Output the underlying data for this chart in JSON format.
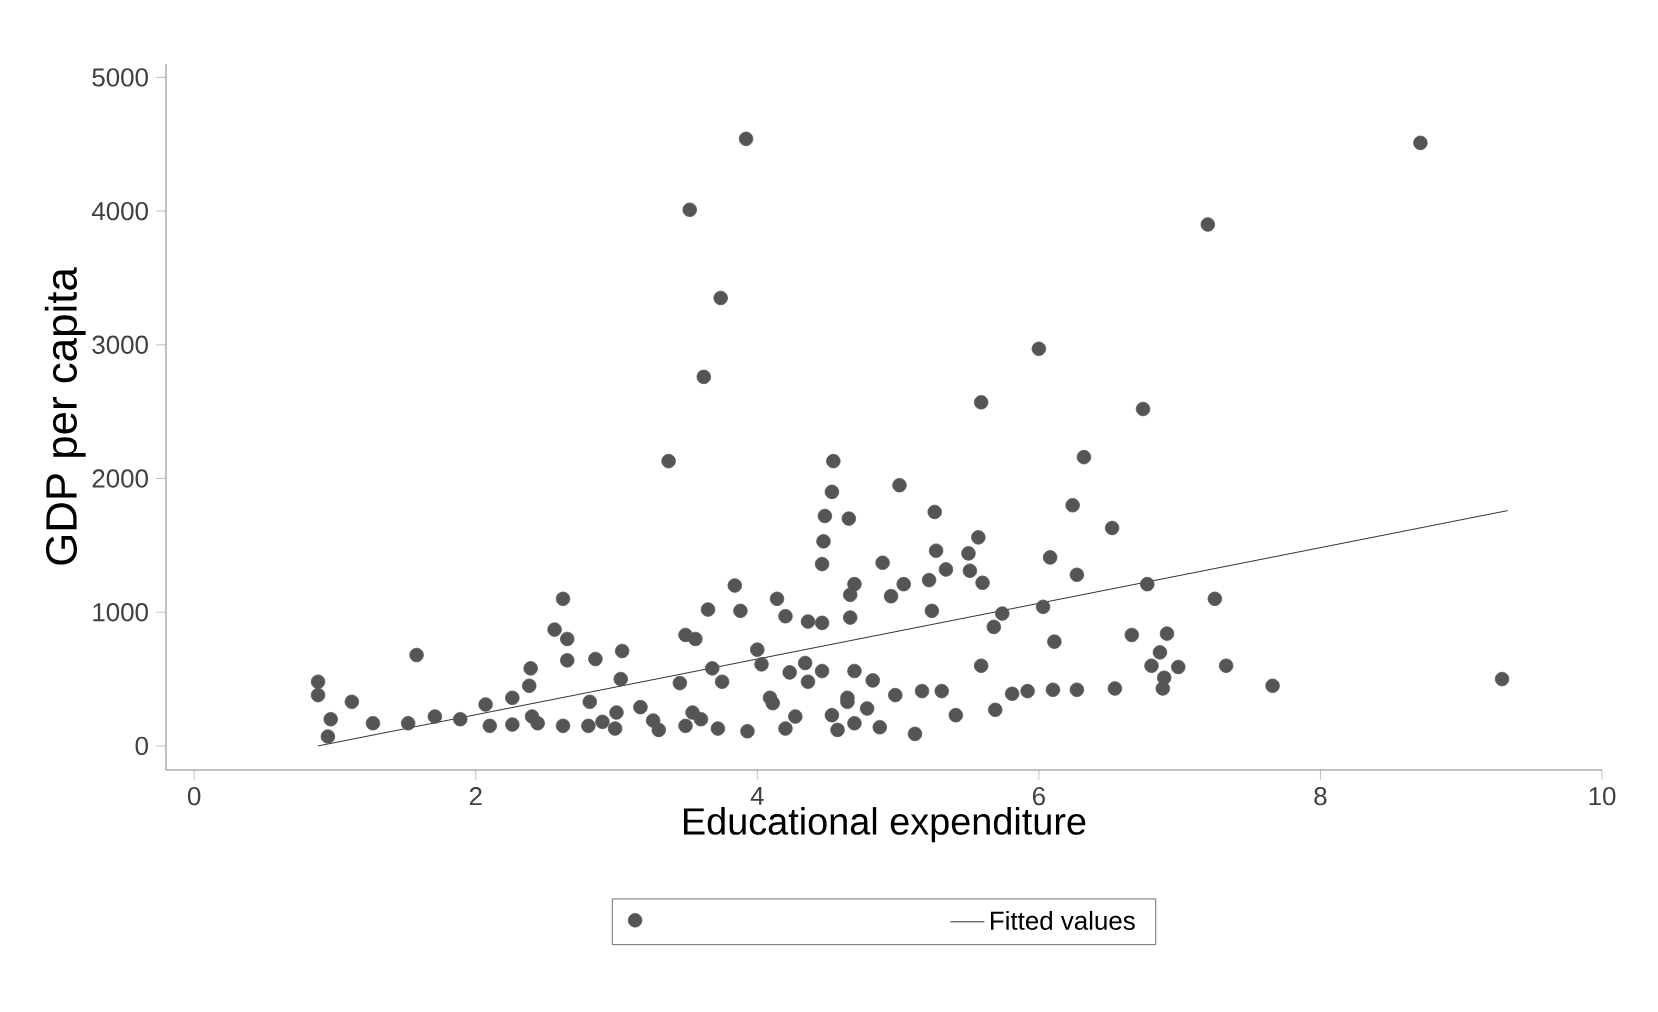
{
  "chart_data": {
    "type": "scatter",
    "xlabel": "Educational expenditure",
    "ylabel": "GDP per capita",
    "xlim": [
      -0.2,
      10
    ],
    "ylim": [
      -180,
      5100
    ],
    "xticks": [
      0,
      2,
      4,
      6,
      8,
      10
    ],
    "yticks": [
      0,
      1000,
      2000,
      3000,
      4000,
      5000
    ],
    "legend": "bottom",
    "grid": false,
    "series": [
      {
        "color": "#555555",
        "marker": "circle",
        "x": [
          3.92,
          3.52,
          3.74,
          3.62,
          3.37,
          8.71,
          7.2,
          6.0,
          5.59,
          6.74,
          6.32,
          0.88,
          0.88,
          0.95,
          0.97,
          1.12,
          1.27,
          1.58,
          1.52,
          1.71,
          1.89,
          2.07,
          2.26,
          2.39,
          2.38,
          2.62,
          2.56,
          2.65,
          2.65,
          2.85,
          3.04,
          3.03,
          2.62,
          2.9,
          3.17,
          3.45,
          3.49,
          3.56,
          3.65,
          3.68,
          3.75,
          3.84,
          3.88,
          3.72,
          3.93,
          4.0,
          4.03,
          4.14,
          4.2,
          4.2,
          4.23,
          4.36,
          4.46,
          4.34,
          4.46,
          4.54,
          4.53,
          4.48,
          4.65,
          4.47,
          4.46,
          4.66,
          4.53,
          4.57,
          4.64,
          3.26,
          3.54,
          4.09,
          4.27,
          2.26,
          2.81,
          2.44,
          2.99,
          3.49,
          5.01,
          5.26,
          5.57,
          4.89,
          5.27,
          5.5,
          5.34,
          5.51,
          5.22,
          5.04,
          4.95,
          4.69,
          4.66,
          5.6,
          5.24,
          6.08,
          6.24,
          6.52,
          6.27,
          6.03,
          5.74,
          5.68,
          6.77,
          7.25,
          6.11,
          6.66,
          6.91,
          6.86,
          6.8,
          6.99,
          7.33,
          6.89,
          6.88,
          7.66,
          9.29,
          6.54,
          6.27,
          6.1,
          5.92,
          5.81,
          5.69,
          5.59,
          5.41,
          5.31,
          5.17,
          4.98,
          4.82,
          4.69,
          4.64,
          4.78,
          4.87,
          4.69,
          5.12,
          4.11,
          4.36,
          2.8,
          3.3,
          3.6,
          3.0,
          2.4,
          2.1
        ],
        "values": [
          4540,
          4010,
          3350,
          2760,
          2130,
          4510,
          3900,
          2970,
          2570,
          2520,
          2160,
          480,
          380,
          70,
          200,
          330,
          170,
          680,
          170,
          220,
          200,
          310,
          160,
          580,
          450,
          1100,
          870,
          800,
          640,
          650,
          710,
          500,
          150,
          180,
          290,
          470,
          830,
          800,
          1020,
          580,
          480,
          1200,
          1010,
          130,
          110,
          720,
          610,
          1100,
          970,
          130,
          550,
          930,
          920,
          620,
          560,
          2130,
          1900,
          1720,
          1700,
          1530,
          1360,
          960,
          230,
          120,
          330,
          190,
          250,
          360,
          220,
          360,
          330,
          170,
          130,
          150,
          1950,
          1750,
          1560,
          1370,
          1460,
          1440,
          1320,
          1310,
          1240,
          1210,
          1120,
          1210,
          1130,
          1220,
          1010,
          1410,
          1800,
          1630,
          1280,
          1040,
          990,
          890,
          1210,
          1100,
          780,
          830,
          840,
          700,
          600,
          590,
          600,
          510,
          430,
          450,
          500,
          430,
          420,
          420,
          410,
          390,
          270,
          600,
          230,
          410,
          410,
          380,
          490,
          560,
          360,
          280,
          140,
          170,
          90,
          320,
          480,
          150,
          120,
          200,
          250,
          220,
          150
        ]
      },
      {
        "name": "Fitted values",
        "type": "line",
        "color": "#333333",
        "marker": "none",
        "line_style": "solid",
        "x": [
          0.88,
          9.33
        ],
        "values": [
          0,
          1760
        ]
      }
    ]
  }
}
